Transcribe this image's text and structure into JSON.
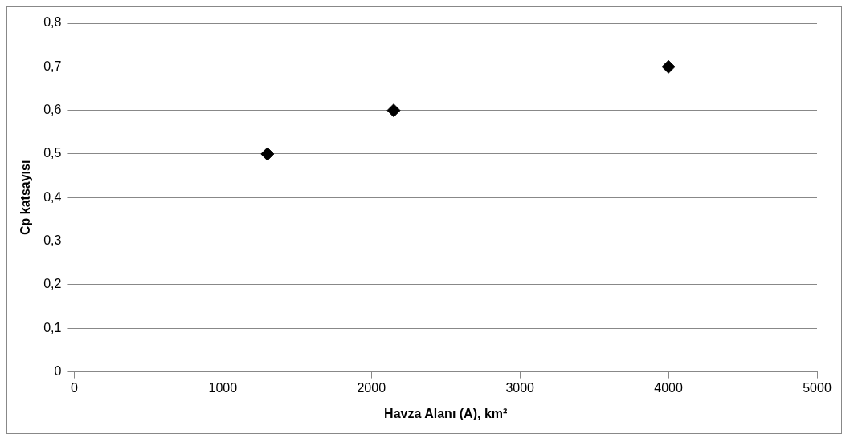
{
  "chart_data": {
    "type": "scatter",
    "xlabel": "Havza Alanı (A), km²",
    "ylabel": "Cp katsayısı",
    "x": [
      1300,
      2150,
      4000
    ],
    "values": [
      0.5,
      0.6,
      0.7
    ],
    "color": "#000000",
    "marker": "diamond",
    "xlim": [
      0,
      5000
    ],
    "xticks": [
      0,
      1000,
      2000,
      3000,
      4000,
      5000
    ],
    "ylim": [
      0,
      0.8
    ],
    "yticks": [
      {
        "value": 0,
        "label": "0"
      },
      {
        "value": 0.1,
        "label": "0,1"
      },
      {
        "value": 0.2,
        "label": "0,2"
      },
      {
        "value": 0.3,
        "label": "0,3"
      },
      {
        "value": 0.4,
        "label": "0,4"
      },
      {
        "value": 0.5,
        "label": "0,5"
      },
      {
        "value": 0.6,
        "label": "0,6"
      },
      {
        "value": 0.7,
        "label": "0,7"
      },
      {
        "value": 0.8,
        "label": "0,8"
      }
    ],
    "grid": "y"
  }
}
